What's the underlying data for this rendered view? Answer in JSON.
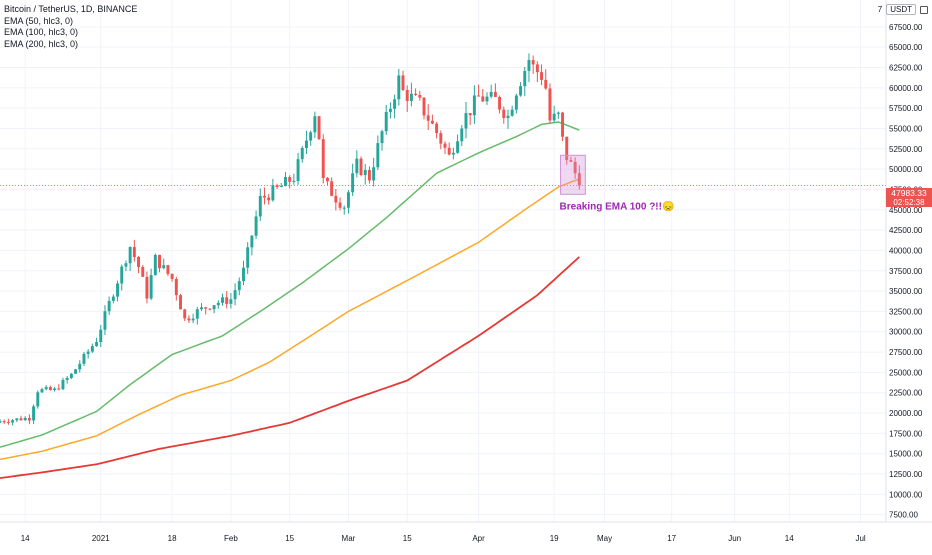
{
  "legend": {
    "title": "Bitcoin / TetherUS, 1D, BINANCE",
    "items": [
      "EMA (50, hlc3, 0)",
      "EMA (100, hlc3, 0)",
      "EMA (200, hlc3, 0)"
    ]
  },
  "toolbar": {
    "currency": "USDT",
    "first_digit": "7"
  },
  "annotation": "Breaking EMA 100 ?!!😞",
  "price_tag": {
    "price": "47983.33",
    "countdown": "02:52:38"
  },
  "colors": {
    "up": "#26a69a",
    "down": "#ef5350",
    "ema50": "#66bb6a",
    "ema100": "#ffa726",
    "ema200": "#e53935",
    "annotation": "#9c27b0",
    "price_tag": "#ef5350"
  },
  "chart_data": {
    "type": "candlestick",
    "title": "Bitcoin / TetherUS, 1D, BINANCE",
    "y_ticks": [
      7500,
      10000,
      12500,
      15000,
      17500,
      20000,
      22500,
      25000,
      27500,
      30000,
      32500,
      35000,
      37500,
      40000,
      42500,
      45000,
      47500,
      50000,
      52500,
      55000,
      57500,
      60000,
      62500,
      65000,
      67500
    ],
    "y_tick_labels": [
      "7500.00",
      "10000.00",
      "12500.00",
      "15000.00",
      "17500.00",
      "20000.00",
      "22500.00",
      "25000.00",
      "27500.00",
      "30000.00",
      "32500.00",
      "35000.00",
      "37500.00",
      "40000.00",
      "42500.00",
      "45000.00",
      "47500.00",
      "50000.00",
      "52500.00",
      "55000.00",
      "57500.00",
      "60000.00",
      "62500.00",
      "65000.00",
      "67500.00"
    ],
    "ylim": [
      6600,
      70800
    ],
    "x_range": [
      "2020-12-08",
      "2021-07-03"
    ],
    "x_ticks": [
      {
        "date": "2020-12-14",
        "label": "14"
      },
      {
        "date": "2021-01-01",
        "label": "2021"
      },
      {
        "date": "2021-01-18",
        "label": "18"
      },
      {
        "date": "2021-02-01",
        "label": "Feb"
      },
      {
        "date": "2021-02-15",
        "label": "15"
      },
      {
        "date": "2021-03-01",
        "label": "Mar"
      },
      {
        "date": "2021-03-15",
        "label": "15"
      },
      {
        "date": "2021-04-01",
        "label": "Apr"
      },
      {
        "date": "2021-04-19",
        "label": "19"
      },
      {
        "date": "2021-05-01",
        "label": "May"
      },
      {
        "date": "2021-05-17",
        "label": "17"
      },
      {
        "date": "2021-06-01",
        "label": "Jun"
      },
      {
        "date": "2021-06-14",
        "label": "14"
      },
      {
        "date": "2021-07-01",
        "label": "Jul"
      }
    ],
    "close_series": [
      {
        "date": "2020-12-08",
        "value": 19000
      },
      {
        "date": "2020-12-13",
        "value": 19300
      },
      {
        "date": "2020-12-15",
        "value": 19400
      },
      {
        "date": "2020-12-17",
        "value": 22800
      },
      {
        "date": "2020-12-21",
        "value": 22800
      },
      {
        "date": "2020-12-25",
        "value": 24700
      },
      {
        "date": "2020-12-31",
        "value": 29000
      },
      {
        "date": "2021-01-03",
        "value": 33500
      },
      {
        "date": "2021-01-08",
        "value": 40500
      },
      {
        "date": "2021-01-10",
        "value": 38000
      },
      {
        "date": "2021-01-12",
        "value": 34500
      },
      {
        "date": "2021-01-14",
        "value": 39000
      },
      {
        "date": "2021-01-18",
        "value": 36500
      },
      {
        "date": "2021-01-21",
        "value": 31500
      },
      {
        "date": "2021-01-24",
        "value": 32500
      },
      {
        "date": "2021-01-28",
        "value": 33500
      },
      {
        "date": "2021-02-01",
        "value": 34000
      },
      {
        "date": "2021-02-04",
        "value": 37500
      },
      {
        "date": "2021-02-08",
        "value": 46300
      },
      {
        "date": "2021-02-12",
        "value": 47500
      },
      {
        "date": "2021-02-16",
        "value": 49000
      },
      {
        "date": "2021-02-18",
        "value": 52000
      },
      {
        "date": "2021-02-21",
        "value": 57000
      },
      {
        "date": "2021-02-22",
        "value": 54000
      },
      {
        "date": "2021-02-23",
        "value": 48500
      },
      {
        "date": "2021-02-26",
        "value": 46500
      },
      {
        "date": "2021-02-28",
        "value": 45500
      },
      {
        "date": "2021-03-03",
        "value": 50500
      },
      {
        "date": "2021-03-06",
        "value": 49000
      },
      {
        "date": "2021-03-09",
        "value": 54500
      },
      {
        "date": "2021-03-13",
        "value": 61000
      },
      {
        "date": "2021-03-14",
        "value": 59500
      },
      {
        "date": "2021-03-18",
        "value": 58000
      },
      {
        "date": "2021-03-22",
        "value": 54500
      },
      {
        "date": "2021-03-25",
        "value": 51500
      },
      {
        "date": "2021-03-28",
        "value": 55800
      },
      {
        "date": "2021-04-01",
        "value": 58800
      },
      {
        "date": "2021-04-05",
        "value": 58500
      },
      {
        "date": "2021-04-08",
        "value": 56500
      },
      {
        "date": "2021-04-10",
        "value": 59800
      },
      {
        "date": "2021-04-13",
        "value": 63500
      },
      {
        "date": "2021-04-14",
        "value": 62500
      },
      {
        "date": "2021-04-16",
        "value": 61500
      },
      {
        "date": "2021-04-17",
        "value": 60000
      },
      {
        "date": "2021-04-18",
        "value": 56000
      },
      {
        "date": "2021-04-20",
        "value": 56500
      },
      {
        "date": "2021-04-21",
        "value": 53500
      },
      {
        "date": "2021-04-22",
        "value": 51500
      },
      {
        "date": "2021-04-23",
        "value": 50500
      },
      {
        "date": "2021-04-24",
        "value": 49500
      },
      {
        "date": "2021-04-25",
        "value": 47983
      }
    ],
    "ema_series": [
      {
        "name": "EMA (50, hlc3, 0)",
        "color": "#66bb6a",
        "points": [
          {
            "date": "2020-12-08",
            "value": 15800
          },
          {
            "date": "2020-12-18",
            "value": 17300
          },
          {
            "date": "2020-12-31",
            "value": 20200
          },
          {
            "date": "2021-01-08",
            "value": 23500
          },
          {
            "date": "2021-01-18",
            "value": 27200
          },
          {
            "date": "2021-01-30",
            "value": 29500
          },
          {
            "date": "2021-02-08",
            "value": 32500
          },
          {
            "date": "2021-02-18",
            "value": 36000
          },
          {
            "date": "2021-03-01",
            "value": 40200
          },
          {
            "date": "2021-03-10",
            "value": 44000
          },
          {
            "date": "2021-03-22",
            "value": 49500
          },
          {
            "date": "2021-04-01",
            "value": 52000
          },
          {
            "date": "2021-04-10",
            "value": 54000
          },
          {
            "date": "2021-04-16",
            "value": 55500
          },
          {
            "date": "2021-04-20",
            "value": 55800
          },
          {
            "date": "2021-04-25",
            "value": 54800
          }
        ]
      },
      {
        "name": "EMA (100, hlc3, 0)",
        "color": "#ffa726",
        "points": [
          {
            "date": "2020-12-08",
            "value": 14300
          },
          {
            "date": "2020-12-18",
            "value": 15300
          },
          {
            "date": "2020-12-31",
            "value": 17200
          },
          {
            "date": "2021-01-10",
            "value": 19800
          },
          {
            "date": "2021-01-20",
            "value": 22200
          },
          {
            "date": "2021-02-01",
            "value": 24000
          },
          {
            "date": "2021-02-10",
            "value": 26200
          },
          {
            "date": "2021-02-20",
            "value": 29500
          },
          {
            "date": "2021-03-01",
            "value": 32500
          },
          {
            "date": "2021-03-15",
            "value": 36300
          },
          {
            "date": "2021-04-01",
            "value": 41000
          },
          {
            "date": "2021-04-12",
            "value": 45000
          },
          {
            "date": "2021-04-20",
            "value": 47800
          },
          {
            "date": "2021-04-25",
            "value": 48800
          }
        ]
      },
      {
        "name": "EMA (200, hlc3, 0)",
        "color": "#e53935",
        "points": [
          {
            "date": "2020-12-08",
            "value": 12000
          },
          {
            "date": "2020-12-18",
            "value": 12700
          },
          {
            "date": "2020-12-31",
            "value": 13700
          },
          {
            "date": "2021-01-15",
            "value": 15600
          },
          {
            "date": "2021-02-01",
            "value": 17200
          },
          {
            "date": "2021-02-15",
            "value": 18800
          },
          {
            "date": "2021-03-01",
            "value": 21500
          },
          {
            "date": "2021-03-15",
            "value": 24000
          },
          {
            "date": "2021-04-01",
            "value": 29500
          },
          {
            "date": "2021-04-15",
            "value": 34500
          },
          {
            "date": "2021-04-25",
            "value": 39200
          }
        ]
      }
    ],
    "last_price": 47983.33,
    "highlight": {
      "from": "2021-04-21",
      "to": "2021-04-25",
      "low": 46900,
      "high": 51700
    },
    "grid": true
  }
}
